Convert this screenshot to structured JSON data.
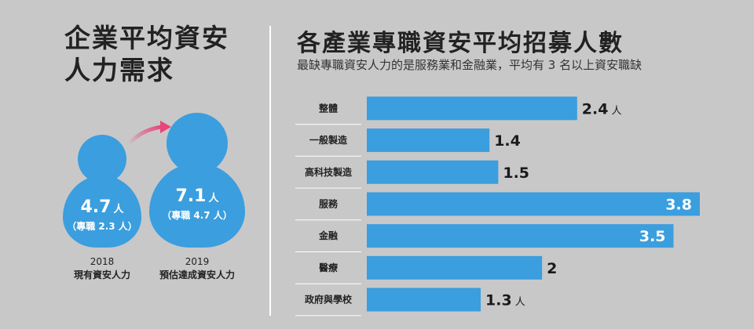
{
  "left": {
    "title": "企業平均資安人力需求",
    "p2018": {
      "value": "4.7",
      "unit": "人",
      "note": "（專職 2.3 人）",
      "year": "2018",
      "desc": "現有資安人力"
    },
    "p2019": {
      "value": "7.1",
      "unit": "人",
      "note": "（專職 4.7 人）",
      "year": "2019",
      "desc": "預估達成資安人力"
    }
  },
  "right": {
    "title": "各產業專職資安平均招募人數",
    "subtitle": "最缺專職資安人力的是服務業和金融業，平均有 3 名以上資安職缺"
  },
  "colors": {
    "bar": "#3b9ede",
    "background": "#c8c8c9",
    "arrow": "#e8457a"
  },
  "chart_data": {
    "type": "bar",
    "orientation": "horizontal",
    "categories": [
      "整體",
      "一般製造",
      "高科技製造",
      "服務",
      "金融",
      "醫療",
      "政府與學校"
    ],
    "values": [
      2.4,
      1.4,
      1.5,
      3.8,
      3.5,
      2,
      1.3
    ],
    "value_labels": [
      "2.4",
      "1.4",
      "1.5",
      "3.8",
      "3.5",
      "2",
      "1.3"
    ],
    "unit_suffix": [
      "人",
      "",
      "",
      "",
      "",
      "",
      "人"
    ],
    "label_inside": [
      false,
      false,
      false,
      true,
      true,
      false,
      false
    ],
    "xlim": [
      0,
      3.8
    ],
    "grid": false
  }
}
